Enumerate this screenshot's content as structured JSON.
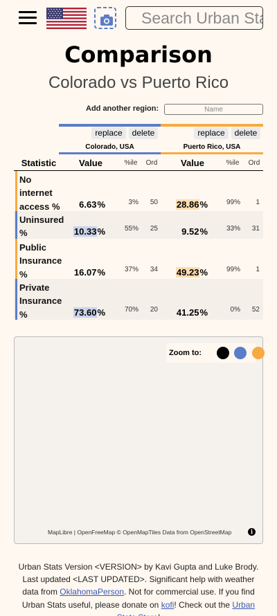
{
  "header": {
    "search_placeholder": "Search Urban Stats",
    "menu_icon": "hamburger-menu-icon",
    "flag_icon": "us-flag-icon",
    "screenshot_icon": "camera-icon"
  },
  "page": {
    "title": "Comparison",
    "subtitle": "Colorado vs Puerto Rico"
  },
  "add_region": {
    "label": "Add another region:",
    "placeholder": "Name"
  },
  "regions": [
    {
      "name": "Colorado, USA",
      "replace_label": "replace",
      "delete_label": "delete",
      "color": "#5a7dc9"
    },
    {
      "name": "Puerto Rico, USA",
      "replace_label": "replace",
      "delete_label": "delete",
      "color": "#f7aa41"
    }
  ],
  "table": {
    "headers": {
      "statistic": "Statistic",
      "value": "Value",
      "percentile": "%ile",
      "ordinal": "Ord"
    },
    "rows": [
      {
        "stat": "No internet access %",
        "values": [
          {
            "value": "6.63",
            "unit": "%",
            "pctile": "3%",
            "ord": "50"
          },
          {
            "value": "28.86",
            "unit": "%",
            "pctile": "99%",
            "ord": "1"
          }
        ]
      },
      {
        "stat": "Uninsured %",
        "values": [
          {
            "value": "10.33",
            "unit": "%",
            "pctile": "55%",
            "ord": "25"
          },
          {
            "value": "9.52",
            "unit": "%",
            "pctile": "33%",
            "ord": "31"
          }
        ]
      },
      {
        "stat": "Public Insurance %",
        "values": [
          {
            "value": "16.07",
            "unit": "%",
            "pctile": "37%",
            "ord": "34"
          },
          {
            "value": "49.23",
            "unit": "%",
            "pctile": "99%",
            "ord": "1"
          }
        ]
      },
      {
        "stat": "Private Insurance %",
        "values": [
          {
            "value": "73.60",
            "unit": "%",
            "pctile": "70%",
            "ord": "20"
          },
          {
            "value": "41.25",
            "unit": "%",
            "pctile": "0%",
            "ord": "52"
          }
        ]
      }
    ]
  },
  "map": {
    "zoom_label": "Zoom to:",
    "zoom_colors": [
      "#000000",
      "#5a7dc9",
      "#f7aa41"
    ],
    "attribution": {
      "maplibre": "MapLibre",
      "sep": " | ",
      "openfreemap": "OpenFreeMap",
      "copyright": " © ",
      "openmaptiles": "OpenMapTiles",
      "data_from": " Data from ",
      "osm": "OpenStreetMap"
    },
    "info_icon": "info-icon"
  },
  "footer": {
    "text1": "Urban Stats Version <VERSION> by Kavi Gupta and Luke Brody. Last updated <LAST UPDATED>. Significant help with weather data from ",
    "link1": "OklahomaPerson",
    "text2": ". Not for commercial use. If you find Urban Stats useful, please donate on ",
    "link2": "kofi",
    "text3": "! Check out the ",
    "link3": "Urban Stats Store",
    "text4": "!"
  }
}
